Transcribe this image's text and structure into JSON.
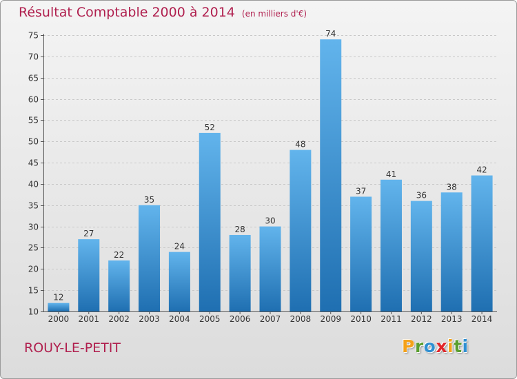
{
  "header": {
    "title": "Résultat Comptable 2000 à 2014",
    "unit": "(en milliers d'€)"
  },
  "footer": {
    "commune": "ROUY-LE-PETIT",
    "logo_letters": [
      "P",
      "r",
      "o",
      "x",
      "i",
      "t",
      "i"
    ],
    "logo_colors": [
      "#f4a11a",
      "#5a9e2f",
      "#2f8fd1",
      "#e1262b",
      "#f4a11a",
      "#5a9e2f",
      "#2f8fd1"
    ]
  },
  "colors": {
    "title": "#b01f4e",
    "bar_top": "#62b4ec",
    "bar_bottom": "#1f6fb1",
    "grid": "#c8c8c8"
  },
  "chart_data": {
    "type": "bar",
    "title": "Résultat Comptable 2000 à 2014",
    "ylabel": "(en milliers d'€)",
    "categories": [
      "2000",
      "2001",
      "2002",
      "2003",
      "2004",
      "2005",
      "2006",
      "2007",
      "2008",
      "2009",
      "2010",
      "2011",
      "2012",
      "2013",
      "2014"
    ],
    "values": [
      12,
      27,
      22,
      35,
      24,
      52,
      28,
      30,
      48,
      74,
      37,
      41,
      36,
      38,
      42
    ],
    "ylim": [
      10,
      75
    ],
    "yticks": [
      10,
      15,
      20,
      25,
      30,
      35,
      40,
      45,
      50,
      55,
      60,
      65,
      70,
      75
    ],
    "grid": true,
    "data_labels": true
  }
}
